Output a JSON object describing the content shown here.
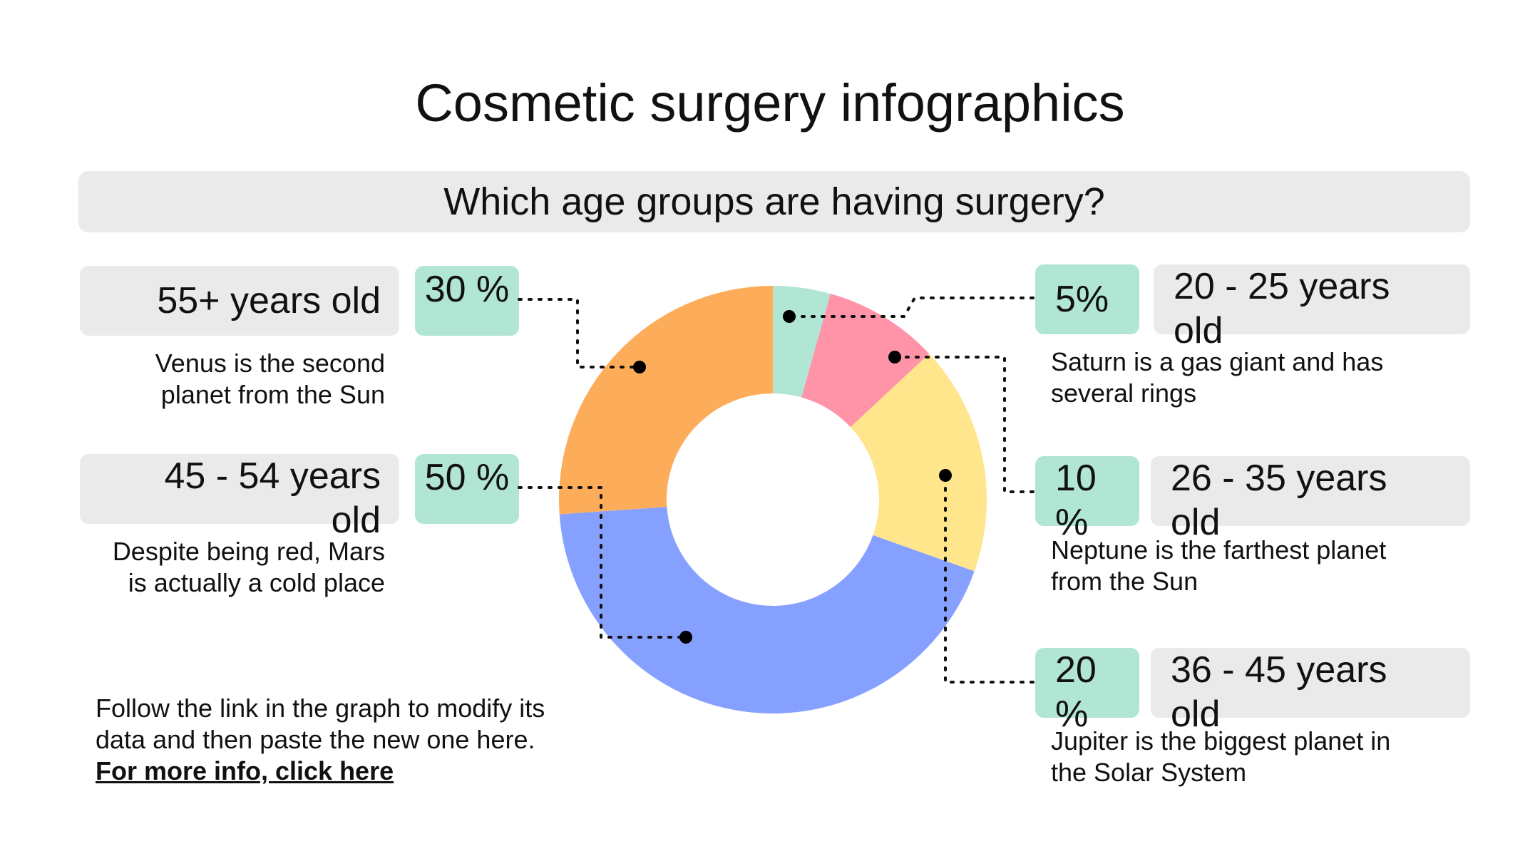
{
  "title": "Cosmetic surgery infographics",
  "subtitle": "Which age groups are having surgery?",
  "groups": {
    "g55plus": {
      "age": "55+ years old",
      "pct": "30 %",
      "desc_line1": "Venus is the second",
      "desc_line2": "planet from the Sun"
    },
    "g45_54": {
      "age": "45 - 54 years old",
      "pct": "50 %",
      "desc_line1": "Despite being red, Mars",
      "desc_line2": "is actually a cold place"
    },
    "g20_25": {
      "age": "20 - 25 years old",
      "pct": "5%",
      "desc_line1": "Saturn is a gas giant and has",
      "desc_line2": "several rings"
    },
    "g26_35": {
      "age": "26 - 35 years old",
      "pct": "10 %",
      "desc_line1": "Neptune is the farthest planet",
      "desc_line2": "from the Sun"
    },
    "g36_45": {
      "age": "36 - 45 years old",
      "pct": "20 %",
      "desc_line1": "Jupiter is the biggest planet in",
      "desc_line2": "the Solar System"
    }
  },
  "note": {
    "line1": "Follow the link in the graph to modify its",
    "line2": "data and then paste the new one here.",
    "link": "For more info, click here"
  },
  "chart_data": {
    "type": "pie",
    "donut": true,
    "categories": [
      "20 - 25 years old",
      "26 - 35 years old",
      "36 - 45 years old",
      "45 - 54 years old",
      "55+ years old"
    ],
    "values": [
      5,
      10,
      20,
      50,
      30
    ],
    "colors": [
      "#b1e5d4",
      "#ff93a8",
      "#ffe58c",
      "#86a0ff",
      "#fdad5a"
    ]
  }
}
